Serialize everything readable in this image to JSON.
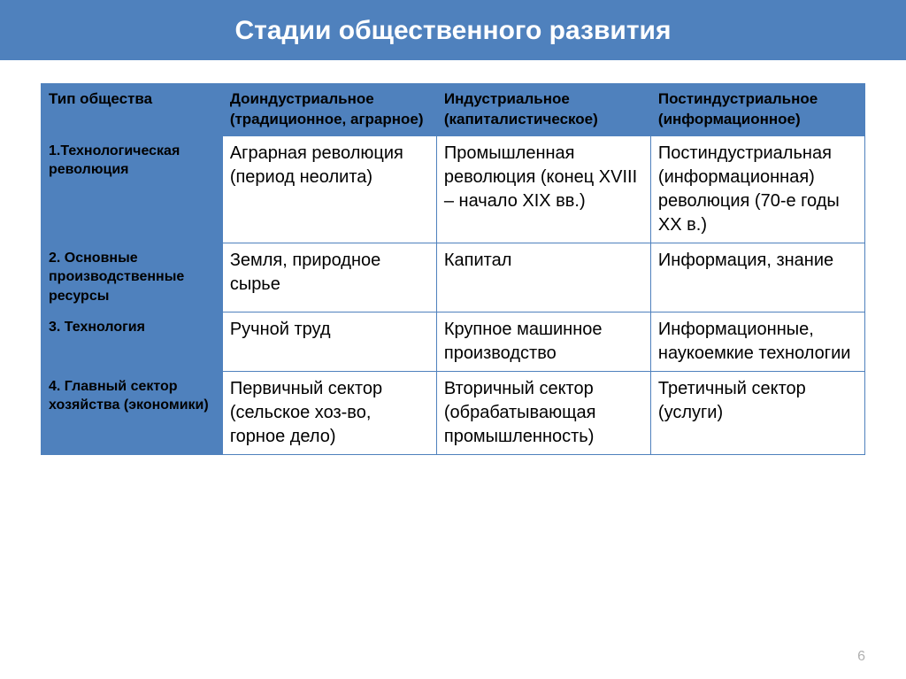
{
  "title": "Стадии общественного развития",
  "title_fontsize": 30,
  "title_color": "#ffffff",
  "title_bar_bg": "#4f81bd",
  "page_number": "6",
  "table": {
    "header_bg": "#4f81bd",
    "rowlabel_bg": "#4f81bd",
    "cell_bg": "#ffffff",
    "border_color": "#4f81bd",
    "header_text_color": "#000000",
    "cell_text_color": "#000000",
    "header_fontsize": 17,
    "rowlabel_fontsize": 16,
    "cell_fontsize": 20,
    "col_widths": [
      "22%",
      "26%",
      "26%",
      "26%"
    ],
    "columns": [
      "Тип общества",
      "Доиндустриальное (традиционное, аграрное)",
      "Индустриальное (капиталистическое)",
      "Постиндустриальное (информационное)"
    ],
    "rows": [
      {
        "label": "1.Технологическая революция",
        "cells": [
          "Аграрная революция (период неолита)",
          "Промышленная революция (конец XVIII – начало XIX вв.)",
          "Постиндустриальная (информационная) революция (70-е годы XX в.)"
        ]
      },
      {
        "label": "2. Основные производственные ресурсы",
        "cells": [
          "Земля, природное сырье",
          "Капитал",
          "Информация, знание"
        ]
      },
      {
        "label": "3. Технология",
        "cells": [
          "Ручной труд",
          "Крупное машинное производство",
          "Информационные, наукоемкие технологии"
        ]
      },
      {
        "label": "4. Главный сектор хозяйства (экономики)",
        "cells": [
          "Первичный сектор (сельское хоз-во, горное дело)",
          "Вторичный сектор (обрабатывающая промышленность)",
          "Третичный сектор (услуги)"
        ]
      }
    ]
  }
}
